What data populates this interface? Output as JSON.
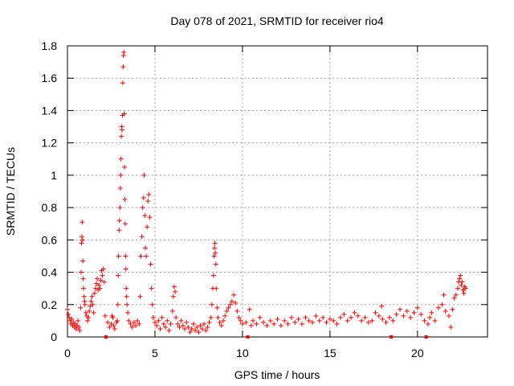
{
  "chart_data": {
    "type": "scatter",
    "title": "Day 078 of 2021, SRMTID for receiver rio4",
    "xlabel": "GPS time / hours",
    "ylabel": "SRMTID / TECUs",
    "xlim": [
      0,
      24
    ],
    "ylim": [
      0,
      1.8
    ],
    "xticks": [
      0,
      5,
      10,
      15,
      20
    ],
    "yticks": [
      0,
      0.2,
      0.4,
      0.6,
      0.8,
      1,
      1.2,
      1.4,
      1.6,
      1.8
    ],
    "xtick_labels": [
      "0",
      "5",
      "10",
      "15",
      "20"
    ],
    "ytick_labels": [
      "0",
      "0.2",
      "0.4",
      "0.6",
      "0.8",
      "1",
      "1.2",
      "1.4",
      "1.6",
      "1.8"
    ],
    "grid": true,
    "marker": "+",
    "color": "#ff0000",
    "gap_markers_x": [
      2.2,
      10.3,
      18.5,
      20.5
    ],
    "series": [
      {
        "name": "SRMTID",
        "points": [
          [
            0.0,
            0.17
          ],
          [
            0.05,
            0.14
          ],
          [
            0.1,
            0.12
          ],
          [
            0.15,
            0.1
          ],
          [
            0.2,
            0.08
          ],
          [
            0.25,
            0.11
          ],
          [
            0.3,
            0.07
          ],
          [
            0.35,
            0.09
          ],
          [
            0.4,
            0.06
          ],
          [
            0.45,
            0.08
          ],
          [
            0.5,
            0.05
          ],
          [
            0.55,
            0.07
          ],
          [
            0.6,
            0.1
          ],
          [
            0.65,
            0.06
          ],
          [
            0.7,
            0.04
          ],
          [
            0.75,
            0.18
          ],
          [
            0.78,
            0.4
          ],
          [
            0.8,
            0.58
          ],
          [
            0.82,
            0.62
          ],
          [
            0.84,
            0.71
          ],
          [
            0.86,
            0.6
          ],
          [
            0.88,
            0.47
          ],
          [
            0.9,
            0.36
          ],
          [
            0.92,
            0.3
          ],
          [
            0.95,
            0.25
          ],
          [
            0.98,
            0.22
          ],
          [
            1.0,
            0.2
          ],
          [
            1.05,
            0.15
          ],
          [
            1.1,
            0.13
          ],
          [
            1.15,
            0.1
          ],
          [
            1.2,
            0.12
          ],
          [
            1.25,
            0.16
          ],
          [
            1.3,
            0.19
          ],
          [
            1.35,
            0.22
          ],
          [
            1.4,
            0.25
          ],
          [
            1.45,
            0.2
          ],
          [
            1.5,
            0.15
          ],
          [
            1.55,
            0.27
          ],
          [
            1.6,
            0.3
          ],
          [
            1.65,
            0.33
          ],
          [
            1.7,
            0.36
          ],
          [
            1.75,
            0.29
          ],
          [
            1.8,
            0.32
          ],
          [
            1.85,
            0.3
          ],
          [
            1.9,
            0.35
          ],
          [
            1.95,
            0.41
          ],
          [
            2.0,
            0.38
          ],
          [
            2.05,
            0.42
          ],
          [
            2.1,
            0.34
          ],
          [
            2.15,
            0.13
          ],
          [
            2.3,
            0.09
          ],
          [
            2.4,
            0.06
          ],
          [
            2.5,
            0.08
          ],
          [
            2.55,
            0.13
          ],
          [
            2.6,
            0.12
          ],
          [
            2.65,
            0.07
          ],
          [
            2.7,
            0.05
          ],
          [
            2.8,
            0.09
          ],
          [
            2.85,
            0.1
          ],
          [
            2.88,
            0.2
          ],
          [
            2.9,
            0.38
          ],
          [
            2.92,
            0.5
          ],
          [
            2.95,
            0.66
          ],
          [
            2.97,
            0.72
          ],
          [
            3.0,
            0.8
          ],
          [
            3.02,
            0.92
          ],
          [
            3.04,
            1.0
          ],
          [
            3.06,
            1.1
          ],
          [
            3.08,
            1.24
          ],
          [
            3.1,
            1.3
          ],
          [
            3.12,
            1.28
          ],
          [
            3.14,
            1.37
          ],
          [
            3.16,
            1.57
          ],
          [
            3.18,
            1.67
          ],
          [
            3.2,
            1.74
          ],
          [
            3.22,
            1.76
          ],
          [
            3.24,
            1.38
          ],
          [
            3.26,
            1.05
          ],
          [
            3.28,
            0.85
          ],
          [
            3.3,
            0.7
          ],
          [
            3.32,
            0.5
          ],
          [
            3.34,
            0.42
          ],
          [
            3.36,
            0.3
          ],
          [
            3.38,
            0.25
          ],
          [
            3.4,
            0.2
          ],
          [
            3.45,
            0.15
          ],
          [
            3.5,
            0.1
          ],
          [
            3.6,
            0.08
          ],
          [
            3.7,
            0.06
          ],
          [
            3.8,
            0.09
          ],
          [
            3.9,
            0.07
          ],
          [
            4.0,
            0.1
          ],
          [
            4.1,
            0.08
          ],
          [
            4.15,
            0.25
          ],
          [
            4.2,
            0.5
          ],
          [
            4.25,
            0.62
          ],
          [
            4.3,
            0.8
          ],
          [
            4.35,
            0.86
          ],
          [
            4.38,
            1.0
          ],
          [
            4.42,
            0.75
          ],
          [
            4.45,
            0.55
          ],
          [
            4.5,
            0.5
          ],
          [
            4.55,
            0.68
          ],
          [
            4.6,
            0.84
          ],
          [
            4.65,
            0.88
          ],
          [
            4.7,
            0.74
          ],
          [
            4.75,
            0.45
          ],
          [
            4.8,
            0.3
          ],
          [
            4.85,
            0.2
          ],
          [
            4.9,
            0.12
          ],
          [
            5.0,
            0.09
          ],
          [
            5.1,
            0.07
          ],
          [
            5.2,
            0.1
          ],
          [
            5.3,
            0.05
          ],
          [
            5.4,
            0.12
          ],
          [
            5.5,
            0.08
          ],
          [
            5.6,
            0.06
          ],
          [
            5.7,
            0.1
          ],
          [
            5.8,
            0.04
          ],
          [
            5.9,
            0.08
          ],
          [
            6.0,
            0.16
          ],
          [
            6.05,
            0.25
          ],
          [
            6.1,
            0.31
          ],
          [
            6.15,
            0.28
          ],
          [
            6.2,
            0.12
          ],
          [
            6.3,
            0.08
          ],
          [
            6.4,
            0.06
          ],
          [
            6.5,
            0.1
          ],
          [
            6.6,
            0.07
          ],
          [
            6.7,
            0.05
          ],
          [
            6.8,
            0.09
          ],
          [
            6.9,
            0.06
          ],
          [
            7.0,
            0.03
          ],
          [
            7.1,
            0.05
          ],
          [
            7.2,
            0.08
          ],
          [
            7.3,
            0.04
          ],
          [
            7.4,
            0.06
          ],
          [
            7.5,
            0.03
          ],
          [
            7.6,
            0.07
          ],
          [
            7.7,
            0.05
          ],
          [
            7.8,
            0.08
          ],
          [
            7.9,
            0.04
          ],
          [
            8.0,
            0.06
          ],
          [
            8.1,
            0.09
          ],
          [
            8.2,
            0.12
          ],
          [
            8.25,
            0.2
          ],
          [
            8.3,
            0.3
          ],
          [
            8.35,
            0.38
          ],
          [
            8.38,
            0.5
          ],
          [
            8.4,
            0.55
          ],
          [
            8.42,
            0.58
          ],
          [
            8.45,
            0.52
          ],
          [
            8.48,
            0.45
          ],
          [
            8.5,
            0.3
          ],
          [
            8.55,
            0.18
          ],
          [
            8.6,
            0.12
          ],
          [
            8.7,
            0.09
          ],
          [
            8.8,
            0.07
          ],
          [
            8.9,
            0.1
          ],
          [
            9.0,
            0.13
          ],
          [
            9.1,
            0.16
          ],
          [
            9.2,
            0.18
          ],
          [
            9.3,
            0.2
          ],
          [
            9.4,
            0.22
          ],
          [
            9.5,
            0.26
          ],
          [
            9.6,
            0.21
          ],
          [
            9.7,
            0.16
          ],
          [
            9.8,
            0.12
          ],
          [
            9.9,
            0.1
          ],
          [
            10.0,
            0.08
          ],
          [
            10.2,
            0.09
          ],
          [
            10.4,
            0.17
          ],
          [
            10.5,
            0.07
          ],
          [
            10.6,
            0.1
          ],
          [
            10.8,
            0.08
          ],
          [
            11.0,
            0.12
          ],
          [
            11.2,
            0.09
          ],
          [
            11.4,
            0.07
          ],
          [
            11.6,
            0.1
          ],
          [
            11.8,
            0.08
          ],
          [
            12.0,
            0.11
          ],
          [
            12.2,
            0.07
          ],
          [
            12.4,
            0.1
          ],
          [
            12.6,
            0.08
          ],
          [
            12.8,
            0.12
          ],
          [
            13.0,
            0.09
          ],
          [
            13.2,
            0.11
          ],
          [
            13.4,
            0.08
          ],
          [
            13.6,
            0.12
          ],
          [
            13.8,
            0.1
          ],
          [
            14.0,
            0.09
          ],
          [
            14.2,
            0.13
          ],
          [
            14.4,
            0.1
          ],
          [
            14.6,
            0.12
          ],
          [
            14.8,
            0.09
          ],
          [
            15.0,
            0.11
          ],
          [
            15.2,
            0.1
          ],
          [
            15.4,
            0.08
          ],
          [
            15.6,
            0.12
          ],
          [
            15.8,
            0.14
          ],
          [
            16.0,
            0.1
          ],
          [
            16.2,
            0.12
          ],
          [
            16.4,
            0.15
          ],
          [
            16.6,
            0.13
          ],
          [
            16.8,
            0.1
          ],
          [
            17.0,
            0.12
          ],
          [
            17.2,
            0.09
          ],
          [
            17.4,
            0.1
          ],
          [
            17.6,
            0.15
          ],
          [
            17.8,
            0.13
          ],
          [
            17.95,
            0.19
          ],
          [
            18.0,
            0.11
          ],
          [
            18.2,
            0.09
          ],
          [
            18.4,
            0.12
          ],
          [
            18.6,
            0.1
          ],
          [
            18.8,
            0.14
          ],
          [
            19.0,
            0.17
          ],
          [
            19.2,
            0.13
          ],
          [
            19.4,
            0.16
          ],
          [
            19.6,
            0.12
          ],
          [
            19.8,
            0.15
          ],
          [
            20.0,
            0.18
          ],
          [
            20.2,
            0.14
          ],
          [
            20.4,
            0.1
          ],
          [
            20.6,
            0.08
          ],
          [
            20.7,
            0.12
          ],
          [
            20.8,
            0.15
          ],
          [
            21.0,
            0.1
          ],
          [
            21.2,
            0.18
          ],
          [
            21.4,
            0.2
          ],
          [
            21.5,
            0.26
          ],
          [
            21.6,
            0.16
          ],
          [
            21.8,
            0.13
          ],
          [
            21.9,
            0.06
          ],
          [
            22.0,
            0.17
          ],
          [
            22.1,
            0.24
          ],
          [
            22.2,
            0.26
          ],
          [
            22.3,
            0.3
          ],
          [
            22.35,
            0.34
          ],
          [
            22.4,
            0.36
          ],
          [
            22.45,
            0.38
          ],
          [
            22.5,
            0.32
          ],
          [
            22.55,
            0.34
          ],
          [
            22.6,
            0.29
          ],
          [
            22.65,
            0.27
          ],
          [
            22.7,
            0.31
          ],
          [
            22.75,
            0.3
          ]
        ]
      }
    ]
  }
}
